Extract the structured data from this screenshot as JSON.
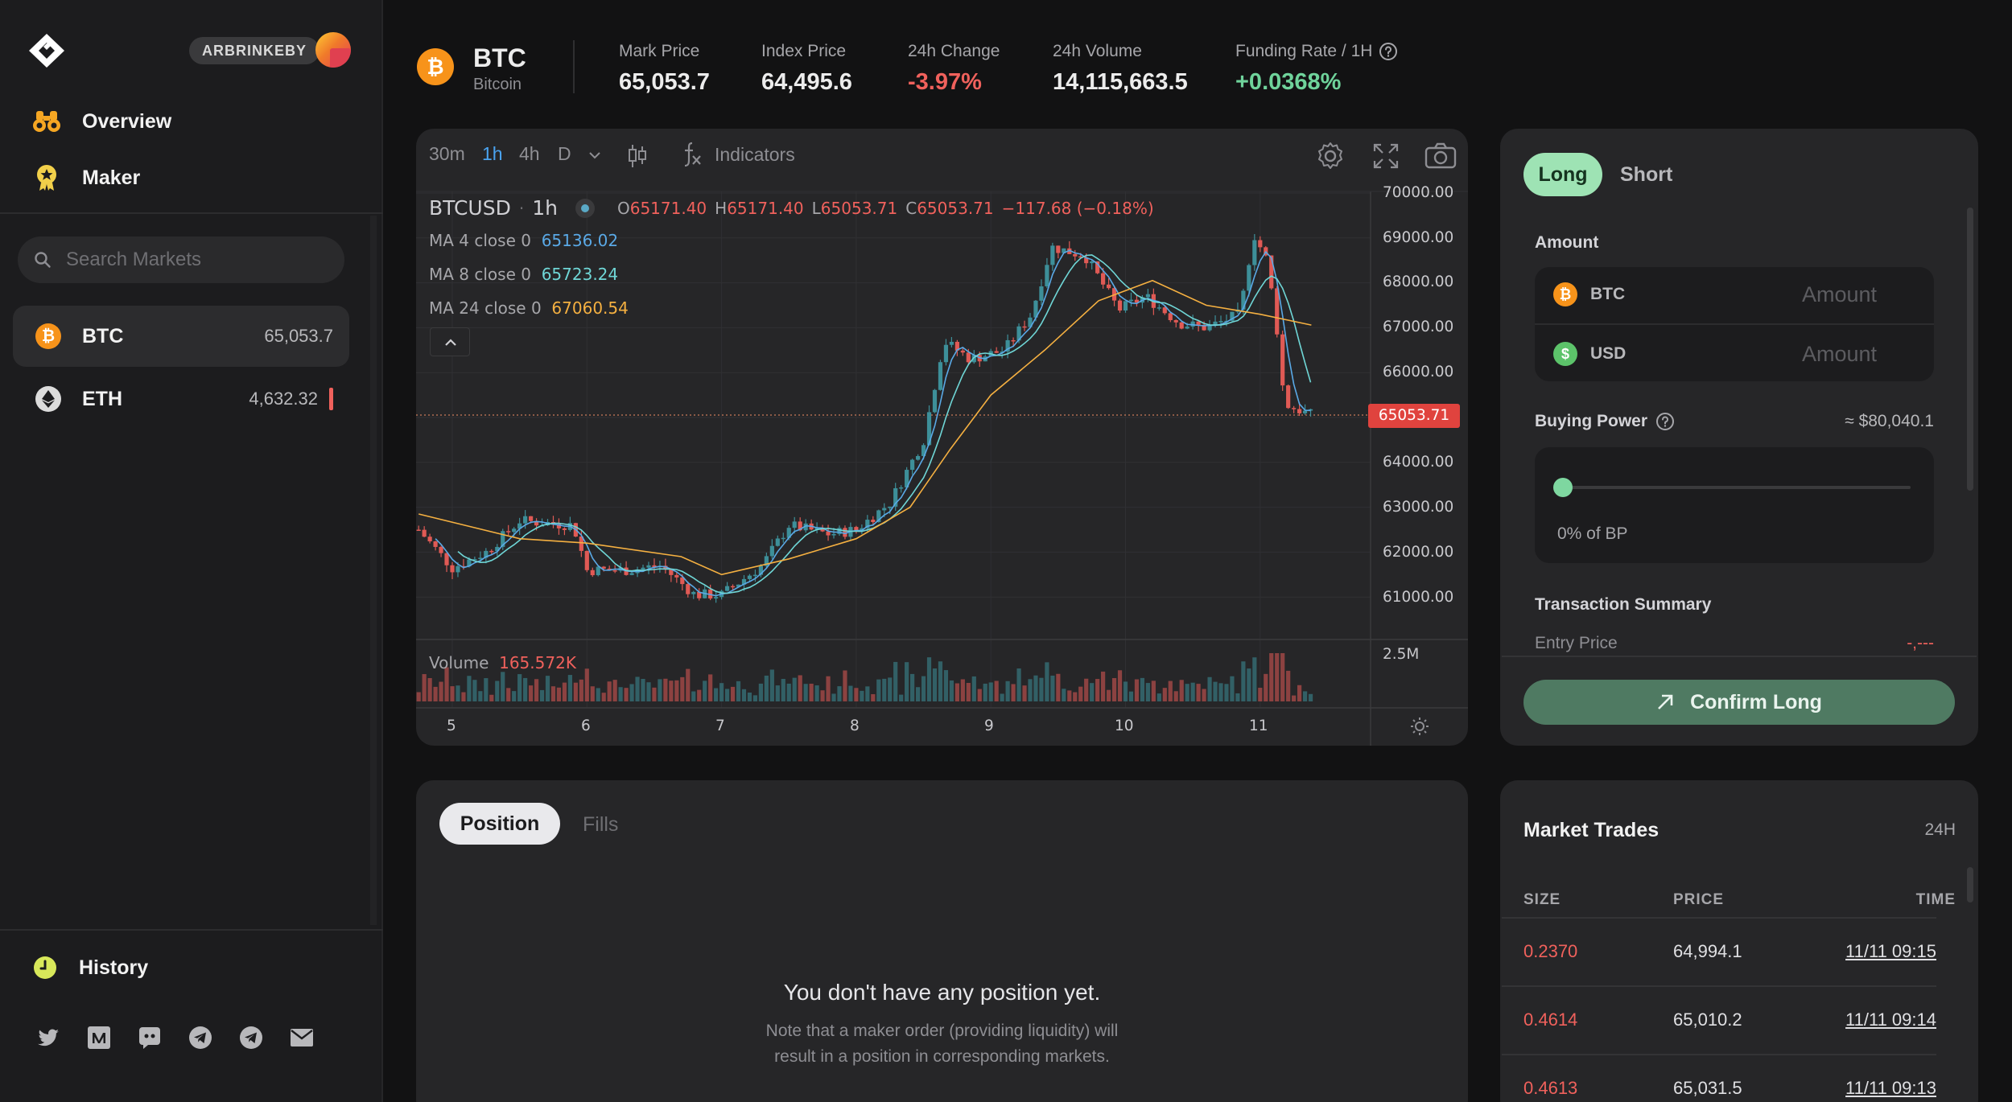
{
  "sidebar": {
    "network_badge": "ARBRINKEBY",
    "nav": [
      {
        "label": "Overview",
        "icon": "binoculars-icon"
      },
      {
        "label": "Maker",
        "icon": "maker-badge-icon"
      }
    ],
    "search_placeholder": "Search Markets",
    "markets": [
      {
        "symbol": "BTC",
        "price": "65,053.7",
        "active": true
      },
      {
        "symbol": "ETH",
        "price": "4,632.32",
        "active": false
      }
    ],
    "history_label": "History",
    "social_icons": [
      "twitter-icon",
      "medium-icon",
      "discord-icon",
      "telegram-icon",
      "telegram-icon",
      "mail-icon"
    ]
  },
  "header": {
    "symbol": "BTC",
    "name": "Bitcoin",
    "stats": [
      {
        "label": "Mark Price",
        "value": "65,053.7",
        "tone": "neutral"
      },
      {
        "label": "Index Price",
        "value": "64,495.6",
        "tone": "neutral"
      },
      {
        "label": "24h Change",
        "value": "-3.97%",
        "tone": "negative"
      },
      {
        "label": "24h Volume",
        "value": "14,115,663.5",
        "tone": "neutral"
      },
      {
        "label": "Funding Rate / 1H",
        "value": "+0.0368%",
        "tone": "positive"
      }
    ]
  },
  "chart_toolbar": {
    "timeframes": [
      "30m",
      "1h",
      "4h",
      "D"
    ],
    "active_timeframe": "1h",
    "indicators_label": "Indicators"
  },
  "chart_legend": {
    "pair": "BTCUSD",
    "interval": "1h",
    "open": "65171.40",
    "high": "65171.40",
    "low": "65053.71",
    "close": "65053.71",
    "change": "−117.68 (−0.18%)",
    "ma": [
      {
        "label": "MA 4 close 0",
        "value": "65136.02",
        "color": "#5aa9e6"
      },
      {
        "label": "MA 8 close 0",
        "value": "65723.24",
        "color": "#6fd6d6"
      },
      {
        "label": "MA 24 close 0",
        "value": "67060.54",
        "color": "#f5b041"
      }
    ],
    "volume_label": "Volume",
    "volume_value": "165.572K"
  },
  "chart_data": {
    "type": "candlestick",
    "x_tick_labels": [
      "5",
      "6",
      "7",
      "8",
      "9",
      "10",
      "11"
    ],
    "y_tick_labels": [
      "70000.00",
      "69000.00",
      "68000.00",
      "67000.00",
      "66000.00",
      "65000.00",
      "64000.00",
      "63000.00",
      "62000.00",
      "61000.00"
    ],
    "ylim": [
      60000,
      70000
    ],
    "last_price_label": "65053.71",
    "volume_axis_label": "2.5M",
    "close_path": [
      {
        "day": 4.75,
        "close": 62500
      },
      {
        "day": 5.0,
        "close": 61650
      },
      {
        "day": 5.25,
        "close": 62000
      },
      {
        "day": 5.5,
        "close": 62700
      },
      {
        "day": 5.9,
        "close": 62600
      },
      {
        "day": 6.0,
        "close": 61600
      },
      {
        "day": 6.3,
        "close": 61600
      },
      {
        "day": 6.55,
        "close": 61700
      },
      {
        "day": 6.8,
        "close": 61050
      },
      {
        "day": 7.0,
        "close": 61050
      },
      {
        "day": 7.3,
        "close": 61700
      },
      {
        "day": 7.5,
        "close": 62600
      },
      {
        "day": 7.8,
        "close": 62400
      },
      {
        "day": 8.0,
        "close": 62500
      },
      {
        "day": 8.25,
        "close": 63100
      },
      {
        "day": 8.5,
        "close": 64500
      },
      {
        "day": 8.65,
        "close": 66700
      },
      {
        "day": 8.85,
        "close": 66300
      },
      {
        "day": 9.1,
        "close": 66500
      },
      {
        "day": 9.3,
        "close": 67300
      },
      {
        "day": 9.45,
        "close": 68800
      },
      {
        "day": 9.7,
        "close": 68600
      },
      {
        "day": 9.95,
        "close": 67400
      },
      {
        "day": 10.15,
        "close": 67700
      },
      {
        "day": 10.4,
        "close": 67100
      },
      {
        "day": 10.6,
        "close": 67000
      },
      {
        "day": 10.85,
        "close": 67300
      },
      {
        "day": 10.95,
        "close": 69100
      },
      {
        "day": 11.05,
        "close": 68500
      },
      {
        "day": 11.12,
        "close": 67100
      },
      {
        "day": 11.18,
        "close": 65300
      },
      {
        "day": 11.38,
        "close": 65054
      }
    ],
    "ma24_path": [
      {
        "day": 4.75,
        "close": 62850
      },
      {
        "day": 5.5,
        "close": 62300
      },
      {
        "day": 6.0,
        "close": 62200
      },
      {
        "day": 6.7,
        "close": 61900
      },
      {
        "day": 7.0,
        "close": 61500
      },
      {
        "day": 7.5,
        "close": 61850
      },
      {
        "day": 8.0,
        "close": 62300
      },
      {
        "day": 8.4,
        "close": 63000
      },
      {
        "day": 8.7,
        "close": 64300
      },
      {
        "day": 9.0,
        "close": 65500
      },
      {
        "day": 9.4,
        "close": 66500
      },
      {
        "day": 9.8,
        "close": 67600
      },
      {
        "day": 10.2,
        "close": 68050
      },
      {
        "day": 10.6,
        "close": 67500
      },
      {
        "day": 11.0,
        "close": 67300
      },
      {
        "day": 11.38,
        "close": 67060
      }
    ]
  },
  "trade": {
    "tabs": [
      "Long",
      "Short"
    ],
    "amount_label": "Amount",
    "fields": [
      {
        "currency": "BTC",
        "placeholder": "Amount"
      },
      {
        "currency": "USD",
        "placeholder": "Amount"
      }
    ],
    "buying_power_label": "Buying Power",
    "buying_power_value": "≈ $80,040.1",
    "bp_fraction": 0,
    "bp_percent_label": "0% of BP",
    "summary_title": "Transaction Summary",
    "entry_price_label": "Entry Price",
    "entry_price_value": "-,---",
    "confirm_label": "Confirm Long"
  },
  "positions": {
    "tabs": [
      "Position",
      "Fills"
    ],
    "empty_title": "You don't have any position yet.",
    "empty_note_line1": "Note that a maker order (providing liquidity) will",
    "empty_note_line2": "result in a position in corresponding markets."
  },
  "market_trades": {
    "title": "Market Trades",
    "period": "24H",
    "columns": [
      "SIZE",
      "PRICE",
      "TIME"
    ],
    "rows": [
      {
        "size": "0.2370",
        "price": "64,994.1",
        "time": "11/11 09:15"
      },
      {
        "size": "0.4614",
        "price": "65,010.2",
        "time": "11/11 09:14"
      },
      {
        "size": "0.4613",
        "price": "65,031.5",
        "time": "11/11 09:13"
      }
    ]
  },
  "colors": {
    "accent_green": "#6fd39b",
    "negative_red": "#f0615c",
    "btc_orange": "#f7931a",
    "candle_up": "#3d8f99",
    "candle_down": "#e05a55"
  }
}
